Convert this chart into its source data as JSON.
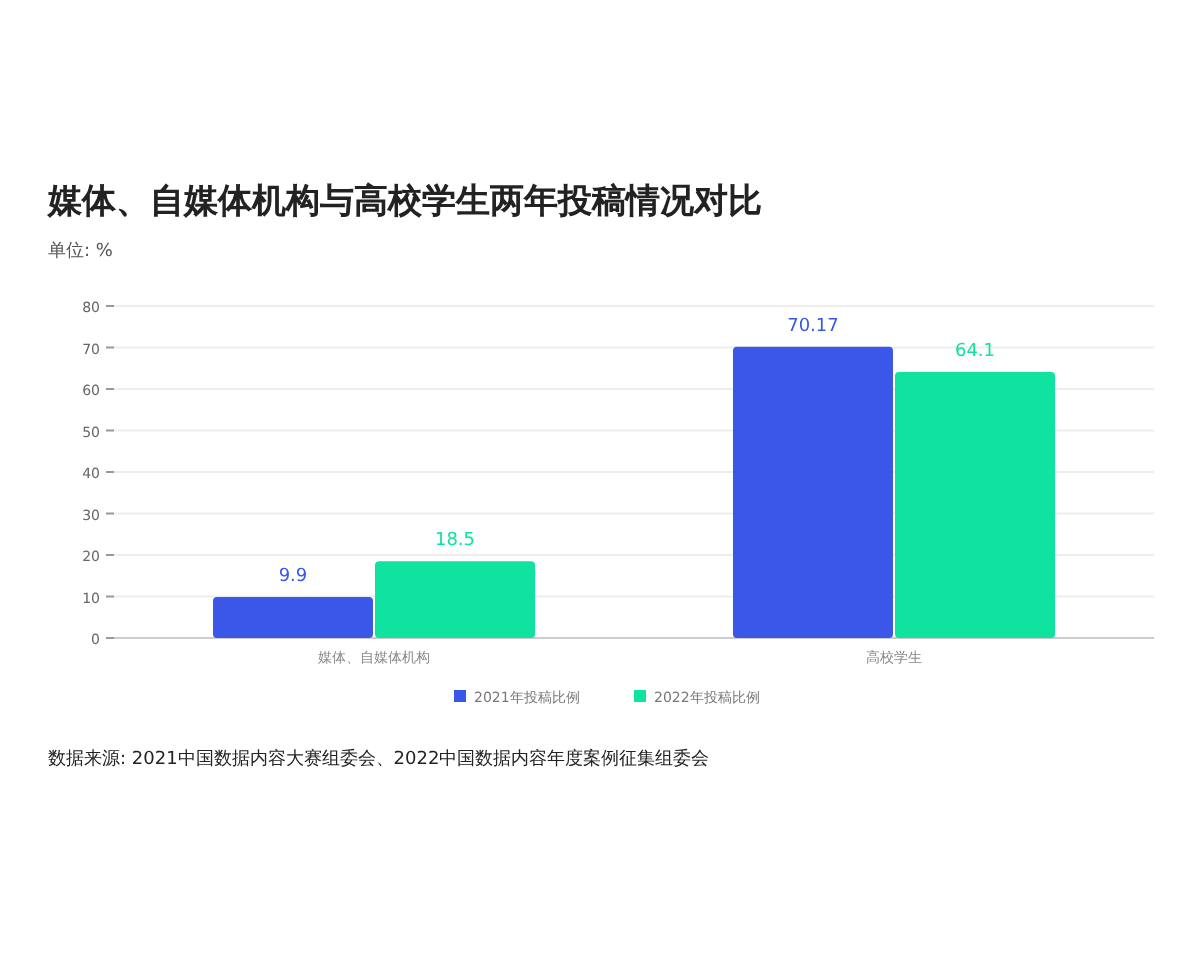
{
  "chart_data": {
    "type": "bar",
    "title": "媒体、自媒体机构与高校学生两年投稿情况对比",
    "ylabel": "单位: %",
    "categories": [
      "媒体、自媒体机构",
      "高校学生"
    ],
    "series": [
      {
        "name": "2021年投稿比例",
        "color": "#3a57e8",
        "values": [
          9.9,
          70.17
        ]
      },
      {
        "name": "2022年投稿比例",
        "color": "#10e2a0",
        "values": [
          18.5,
          64.1
        ]
      }
    ],
    "ylim": [
      0,
      80
    ],
    "yticks": [
      0,
      10,
      20,
      30,
      40,
      50,
      60,
      70,
      80
    ],
    "grid": "y",
    "data_labels": true,
    "legend": "bottom",
    "annotations": [
      "数据来源: 2021中国数据内容大赛组委会、2022中国数据内容年度案例征集组委会"
    ]
  }
}
